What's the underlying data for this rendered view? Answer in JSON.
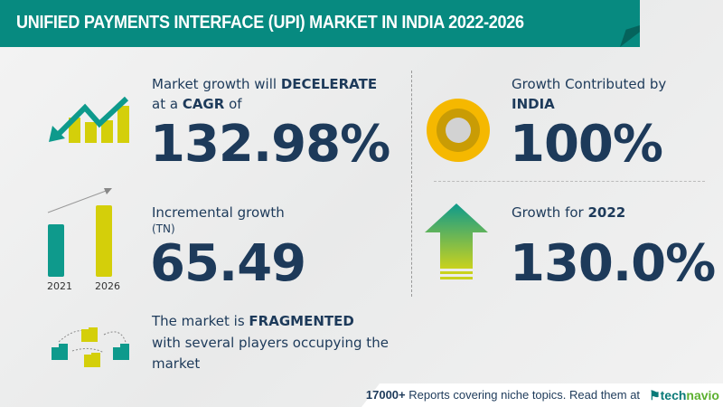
{
  "header": {
    "title": "UNIFIED PAYMENTS INTERFACE (UPI) MARKET IN INDIA 2022-2026"
  },
  "cagr": {
    "line1_prefix": "Market growth will ",
    "line1_bold": "DECELERATE",
    "line2_prefix": "at a ",
    "line2_bold": "CAGR",
    "line2_suffix": " of",
    "value": "132.98%"
  },
  "incremental": {
    "label": "Incremental growth",
    "unit": "(TN)",
    "value": "65.49",
    "bar_years": [
      "2021",
      "2026"
    ]
  },
  "contribution": {
    "label": "Growth Contributed by",
    "region": "INDIA",
    "value": "100%"
  },
  "yoy": {
    "label_prefix": "Growth for ",
    "year": "2022",
    "value": "130.0%"
  },
  "market": {
    "line1_prefix": "The market is ",
    "line1_bold": "FRAGMENTED",
    "line2": "with several players occupying the",
    "line3": "market"
  },
  "footer": {
    "count": "17000+",
    "text": "Reports covering niche topics. Read them at",
    "brand_tech": "tech",
    "brand_navio": "navio"
  },
  "colors": {
    "teal": "#078a80",
    "yellow": "#d4cf0a",
    "navy": "#1d3a5a",
    "gold": "#f5b800"
  }
}
